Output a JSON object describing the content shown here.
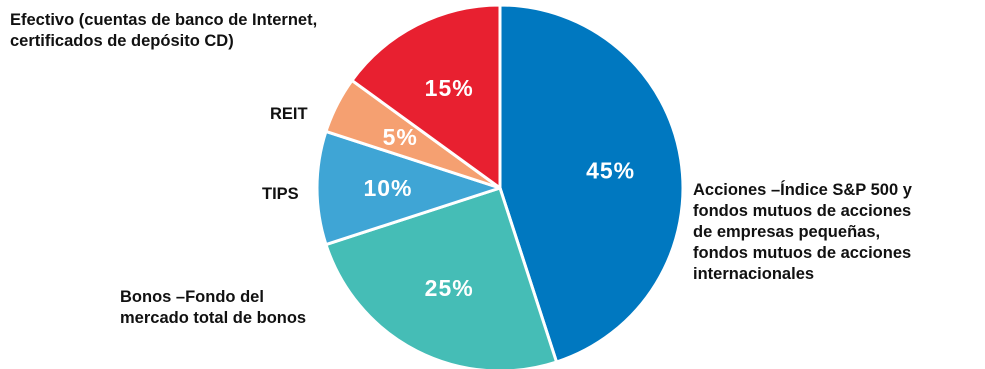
{
  "chart_data": {
    "type": "pie",
    "slices": [
      {
        "key": "stocks",
        "value": 45,
        "label": "45%",
        "color": "#0078C0",
        "legend": [
          "Acciones  –Índice S&P 500 y",
          "fondos mutuos de acciones",
          "de empresas pequeñas,",
          "fondos mutuos de acciones",
          "internacionales"
        ]
      },
      {
        "key": "bonds",
        "value": 25,
        "label": "25%",
        "color": "#45BDB6",
        "legend": [
          "Bonos  –Fondo del",
          "mercado total de bonos"
        ]
      },
      {
        "key": "tips",
        "value": 10,
        "label": "10%",
        "color": "#3FA5D5",
        "legend": [
          "TIPS"
        ]
      },
      {
        "key": "reit",
        "value": 5,
        "label": "5%",
        "color": "#F5A071",
        "legend": [
          "REIT"
        ]
      },
      {
        "key": "cash",
        "value": 15,
        "label": "15%",
        "color": "#E82030",
        "legend": [
          "Efectivo (cuentas de banco de Internet,",
          "certificados de depósito CD)"
        ]
      }
    ]
  }
}
